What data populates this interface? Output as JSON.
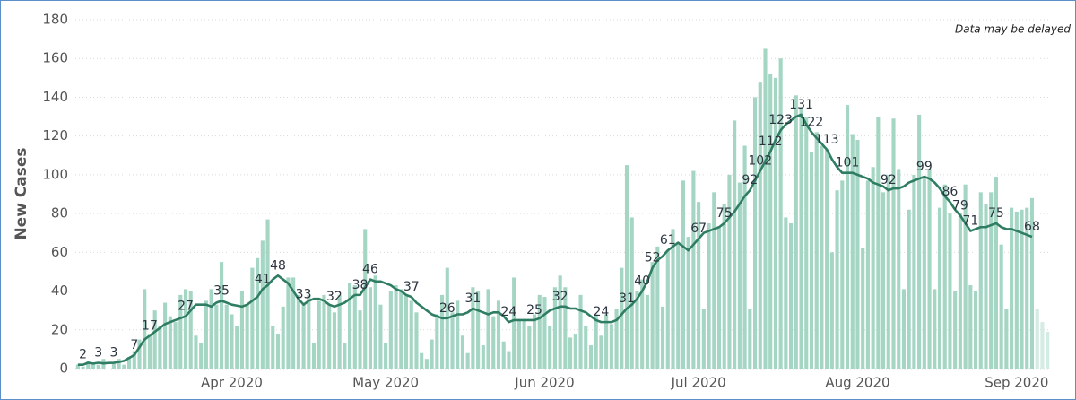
{
  "chart_data": {
    "type": "bar",
    "y_label": "New Cases",
    "annotation": "Data may be delayed",
    "xlim": [
      -0.5,
      189.5
    ],
    "xticks": [
      {
        "value": 30,
        "label": "Apr 2020"
      },
      {
        "value": 60,
        "label": "May 2020"
      },
      {
        "value": 91,
        "label": "Jun 2020"
      },
      {
        "value": 121,
        "label": "Jul 2020"
      },
      {
        "value": 152,
        "label": "Aug 2020"
      },
      {
        "value": 183,
        "label": "Sep 2020"
      }
    ],
    "ylim": [
      0,
      180
    ],
    "yticks": [
      0,
      20,
      40,
      60,
      80,
      100,
      120,
      140,
      160,
      180
    ],
    "grid": true,
    "series": [
      {
        "type": "bar",
        "color": "#a4d6c3",
        "values": [
          2,
          1,
          4,
          3,
          2,
          5,
          0,
          3,
          5,
          2,
          6,
          9,
          15,
          41,
          18,
          30,
          22,
          34,
          27,
          24,
          38,
          41,
          40,
          17,
          13,
          35,
          41,
          33,
          55,
          33,
          28,
          22,
          40,
          33,
          52,
          57,
          66,
          77,
          22,
          18,
          32,
          47,
          47,
          38,
          34,
          38,
          13,
          35,
          38,
          33,
          29,
          38,
          13,
          44,
          43,
          30,
          72,
          42,
          48,
          33,
          13,
          40,
          43,
          41,
          38,
          35,
          29,
          8,
          5,
          15,
          28,
          38,
          52,
          29,
          35,
          17,
          8,
          42,
          40,
          12,
          41,
          27,
          35,
          14,
          9,
          47,
          25,
          25,
          22,
          28,
          38,
          37,
          22,
          42,
          48,
          42,
          16,
          18,
          38,
          22,
          12,
          28,
          17,
          28,
          23,
          31,
          52,
          105,
          78,
          40,
          46,
          38,
          55,
          63,
          32,
          61,
          72,
          64,
          97,
          68,
          102,
          86,
          31,
          75,
          91,
          73,
          85,
          100,
          128,
          96,
          115,
          31,
          140,
          148,
          165,
          152,
          150,
          160,
          78,
          75,
          141,
          135,
          130,
          112,
          122,
          115,
          113,
          60,
          92,
          97,
          136,
          121,
          118,
          62,
          97,
          104,
          130,
          91,
          100,
          129,
          103,
          41,
          82,
          100,
          131,
          99,
          103,
          41,
          83,
          95,
          80,
          40,
          80,
          95,
          43,
          40,
          91,
          85,
          91,
          99,
          64,
          31,
          83,
          81,
          82,
          83,
          88
        ]
      },
      {
        "type": "bar",
        "color": "#d5ece3",
        "x": [
          187,
          188,
          189
        ],
        "values": [
          31,
          24,
          19
        ]
      },
      {
        "type": "line",
        "color": "#2f7d62",
        "values": [
          2,
          2,
          3,
          2.6,
          3,
          2.7,
          2.9,
          3,
          3.4,
          4,
          5.5,
          7,
          11,
          15,
          17,
          19,
          21,
          23,
          24,
          25,
          26,
          27,
          30,
          33,
          33,
          33,
          32,
          34,
          35,
          34,
          33,
          32.5,
          32,
          33,
          35,
          37,
          41,
          43,
          46,
          48,
          46,
          44,
          40,
          36,
          33,
          35,
          36,
          36,
          35,
          33,
          32,
          33,
          34,
          36,
          38,
          38,
          42,
          46,
          45,
          45,
          44,
          43,
          41,
          40,
          38,
          37,
          34,
          32,
          30,
          28,
          27,
          26,
          26,
          27,
          28,
          28,
          29,
          31,
          30,
          29,
          28,
          29,
          29,
          27,
          24,
          25,
          25,
          25,
          25,
          25,
          26,
          28,
          30,
          31,
          32,
          32,
          31,
          31,
          30,
          29,
          27,
          25,
          24,
          24,
          24,
          25,
          28,
          31,
          33,
          36,
          40,
          45,
          52,
          56,
          58,
          61,
          63,
          65,
          63,
          61,
          64,
          67,
          70,
          71,
          72,
          73,
          75,
          78,
          81,
          85,
          89,
          92,
          97,
          102,
          107,
          112,
          118,
          123,
          126,
          128,
          130,
          131,
          126,
          122,
          119,
          116,
          113,
          108,
          104,
          101,
          101,
          101,
          100,
          99,
          98,
          96,
          95,
          94,
          92,
          93,
          93,
          94,
          96,
          97,
          98,
          99,
          98,
          96,
          93,
          89,
          86,
          82,
          79,
          75,
          71,
          72,
          73,
          73,
          74,
          75,
          73,
          72,
          72,
          71,
          70,
          69,
          68
        ],
        "value_labels": [
          null,
          "2",
          null,
          null,
          "3",
          null,
          null,
          "3",
          null,
          null,
          null,
          "7",
          null,
          null,
          "17",
          null,
          null,
          null,
          null,
          null,
          null,
          "27",
          null,
          null,
          null,
          null,
          null,
          null,
          "35",
          null,
          null,
          null,
          null,
          null,
          null,
          null,
          "41",
          null,
          null,
          "48",
          null,
          null,
          null,
          null,
          "33",
          null,
          null,
          null,
          null,
          null,
          "32",
          null,
          null,
          null,
          null,
          "38",
          null,
          "46",
          null,
          null,
          null,
          null,
          null,
          null,
          null,
          "37",
          null,
          null,
          null,
          null,
          null,
          null,
          "26",
          null,
          null,
          null,
          null,
          "31",
          null,
          null,
          null,
          null,
          null,
          null,
          "24",
          null,
          null,
          null,
          null,
          "25",
          null,
          null,
          null,
          null,
          "32",
          null,
          null,
          null,
          null,
          null,
          null,
          null,
          "24",
          null,
          null,
          null,
          null,
          "31",
          null,
          null,
          "40",
          null,
          "52",
          null,
          null,
          "61",
          null,
          null,
          null,
          null,
          null,
          "67",
          null,
          null,
          null,
          null,
          "75",
          null,
          null,
          null,
          null,
          "92",
          null,
          "102",
          null,
          "112",
          null,
          "123",
          null,
          null,
          null,
          "131",
          null,
          "122",
          null,
          null,
          "113",
          null,
          null,
          null,
          "101",
          null,
          null,
          null,
          null,
          null,
          null,
          null,
          "92",
          null,
          null,
          null,
          null,
          null,
          null,
          "99",
          null,
          null,
          null,
          null,
          "86",
          null,
          "79",
          null,
          "71",
          null,
          null,
          null,
          null,
          "75",
          null,
          null,
          null,
          null,
          null,
          null,
          "68"
        ]
      }
    ]
  }
}
